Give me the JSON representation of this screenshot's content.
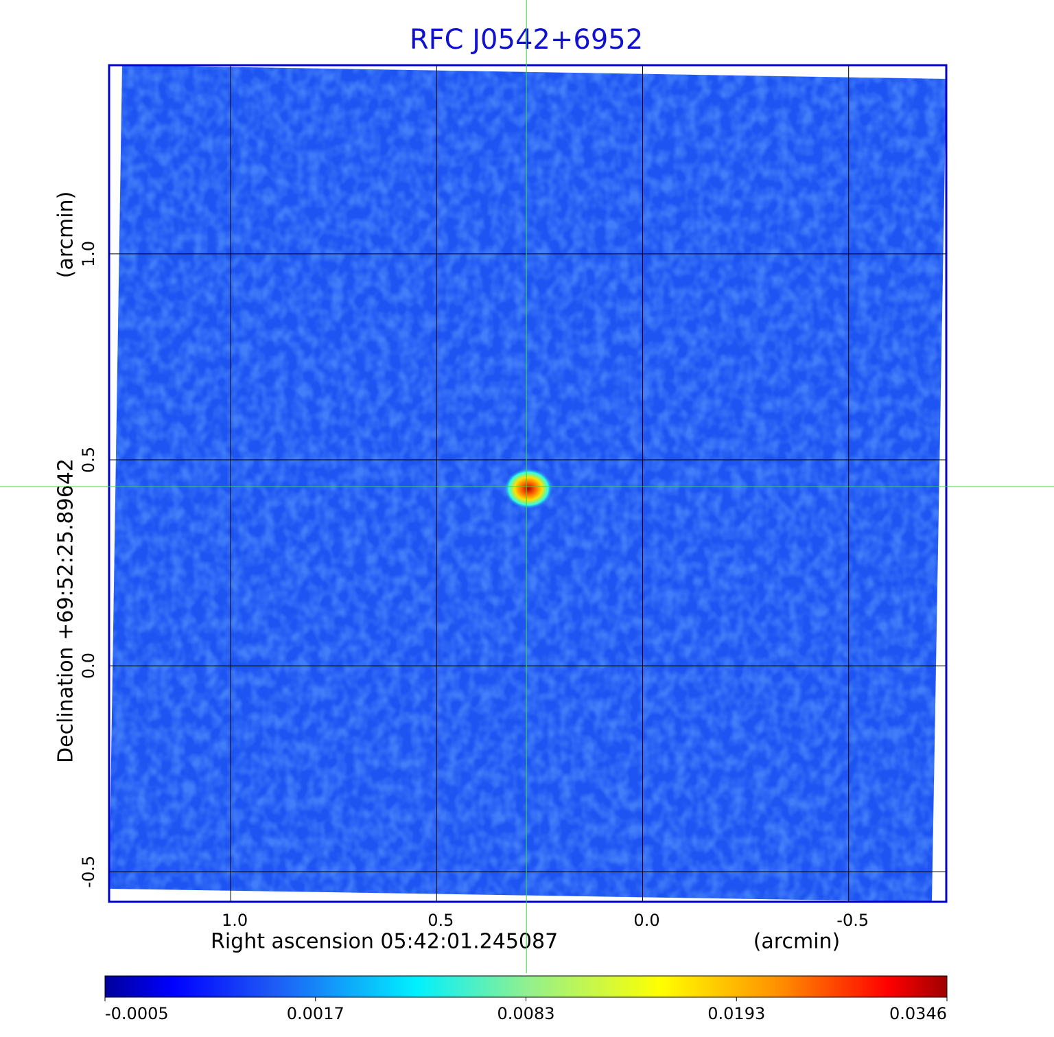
{
  "chart_data": {
    "type": "image",
    "title": "RFC J0542+6952",
    "xlabel": "Right ascension  05:42:01.245087",
    "xunit": "(arcmin)",
    "ylabel": "Declination  +69:52:25.89642",
    "yunit": "(arcmin)",
    "xlim": [
      1.295,
      -0.737
    ],
    "ylim": [
      -0.573,
      1.458
    ],
    "xticks": [
      {
        "value": 1,
        "label": "1.0"
      },
      0.5,
      {
        "value": 0,
        "label": "0.0"
      },
      -0.5
    ],
    "yticks": [
      -0.5,
      {
        "value": 0,
        "label": "0.0"
      },
      0.5,
      {
        "value": 1,
        "label": "1.0"
      }
    ],
    "grid": true,
    "crosshair": {
      "x": 0.282,
      "y": 0.435,
      "color": "#33dd33"
    },
    "colorbar_ticks": [
      -0.0005,
      0.0017,
      0.0083,
      0.0193,
      0.0346
    ],
    "colormap": "jet"
  }
}
